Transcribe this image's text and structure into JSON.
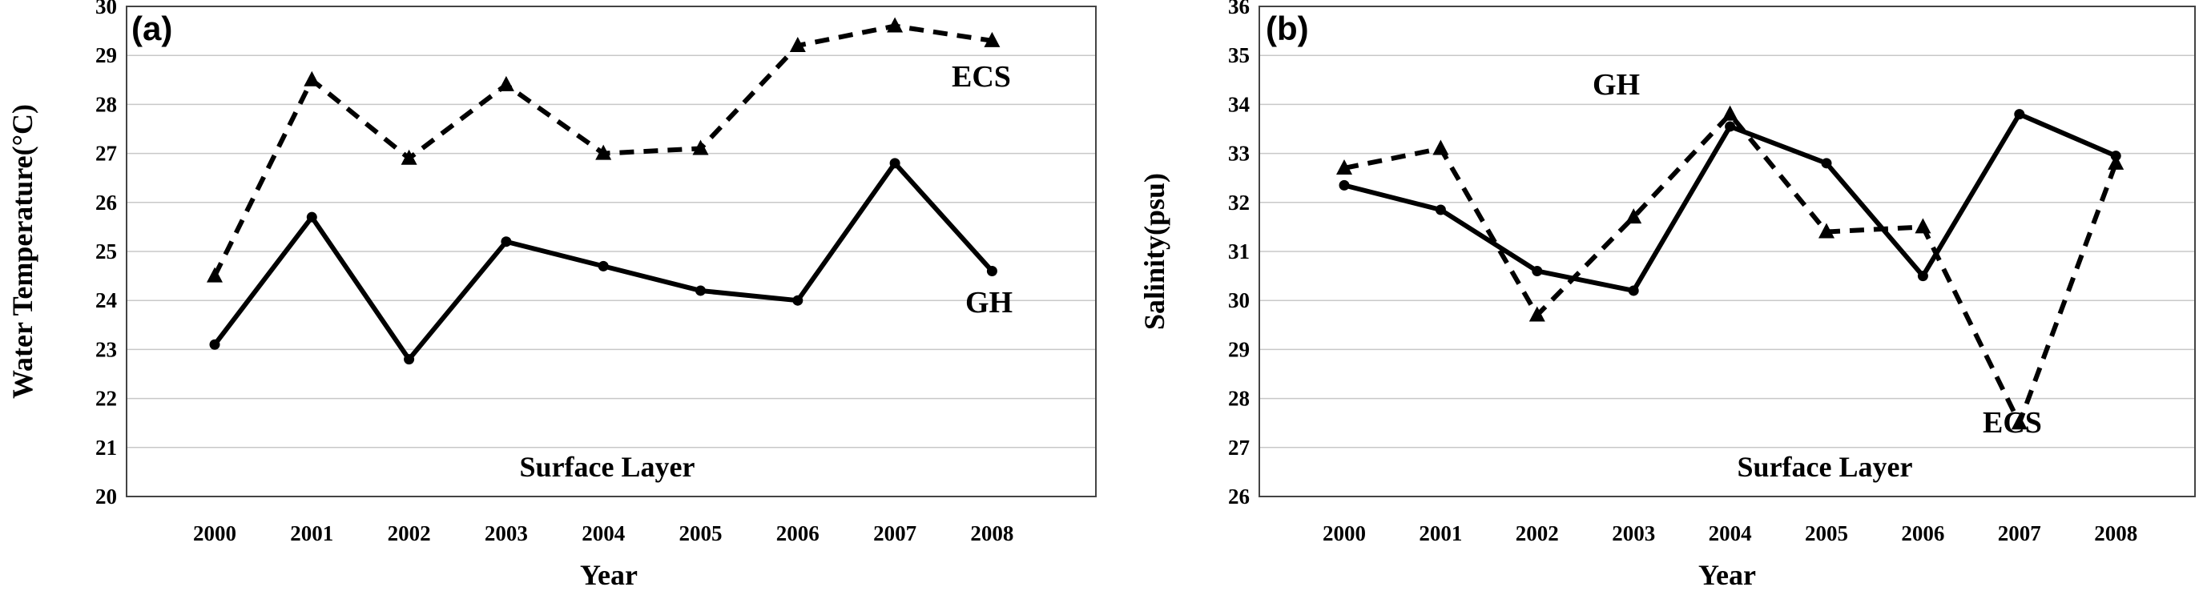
{
  "chart_data": [
    {
      "type": "line",
      "panel_label": "(a)",
      "annotation": "Surface Layer",
      "xlabel": "Year",
      "ylabel": "Water Temperature(°C)",
      "ylim": [
        20,
        30
      ],
      "yticks": [
        "20",
        "21",
        "22",
        "23",
        "24",
        "25",
        "26",
        "27",
        "28",
        "29",
        "30"
      ],
      "categories": [
        "2000",
        "2001",
        "2002",
        "2003",
        "2004",
        "2005",
        "2006",
        "2007",
        "2008"
      ],
      "grid": true,
      "series": [
        {
          "name": "ECS",
          "style": "dashed",
          "marker": "triangle",
          "values": [
            24.5,
            28.5,
            26.9,
            28.4,
            27.0,
            27.1,
            29.2,
            29.6,
            29.3
          ]
        },
        {
          "name": "GH",
          "style": "solid",
          "marker": "circle",
          "values": [
            23.1,
            25.7,
            22.8,
            25.2,
            24.7,
            24.2,
            24.0,
            26.8,
            24.6
          ]
        }
      ]
    },
    {
      "type": "line",
      "panel_label": "(b)",
      "annotation": "Surface Layer",
      "xlabel": "Year",
      "ylabel": "Salinity(psu)",
      "ylim": [
        26,
        36
      ],
      "yticks": [
        "26",
        "27",
        "28",
        "29",
        "30",
        "31",
        "32",
        "33",
        "34",
        "35",
        "36"
      ],
      "categories": [
        "2000",
        "2001",
        "2002",
        "2003",
        "2004",
        "2005",
        "2006",
        "2007",
        "2008"
      ],
      "grid": true,
      "series": [
        {
          "name": "ECS",
          "style": "dashed",
          "marker": "triangle",
          "values": [
            32.7,
            33.1,
            29.7,
            31.7,
            33.8,
            31.4,
            31.5,
            27.5,
            32.8
          ]
        },
        {
          "name": "GH",
          "style": "solid",
          "marker": "circle",
          "values": [
            32.35,
            31.85,
            30.6,
            30.2,
            33.55,
            32.8,
            30.5,
            33.8,
            32.95
          ]
        }
      ]
    }
  ]
}
